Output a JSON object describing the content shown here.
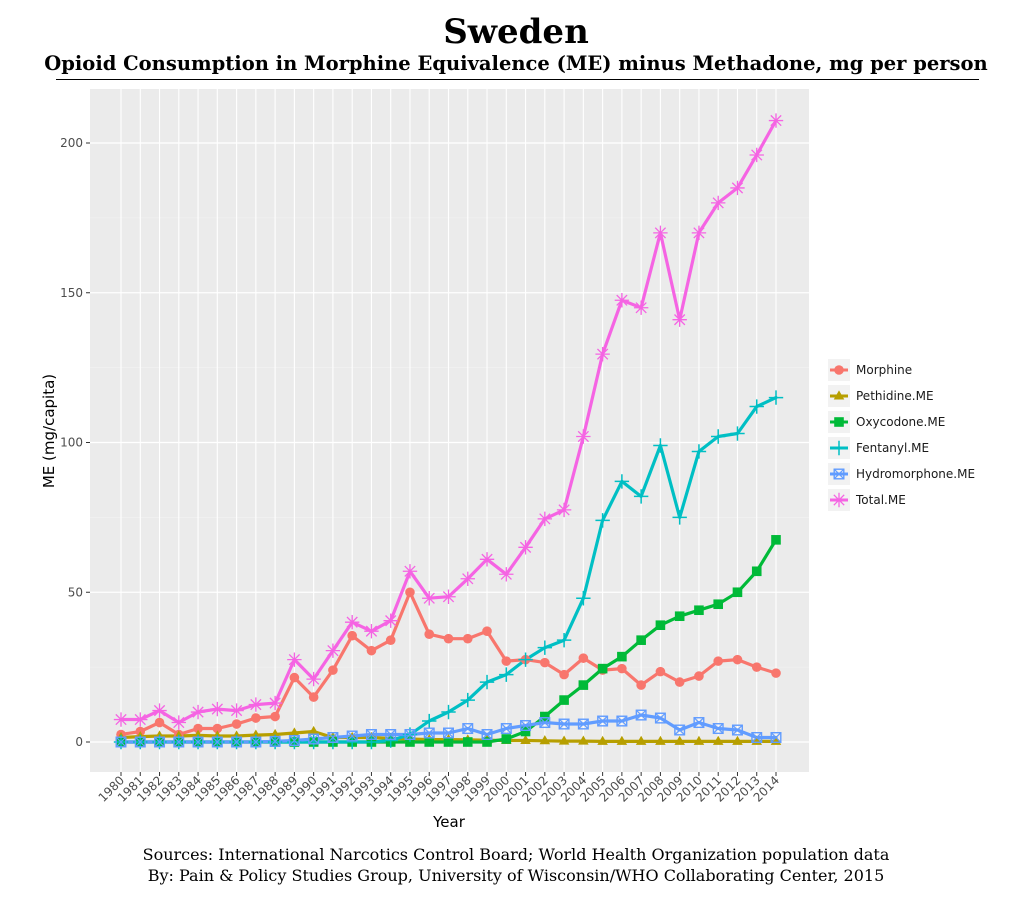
{
  "header": {
    "title": "Sweden",
    "subtitle": "Opioid Consumption in Morphine Equivalence (ME) minus Methadone, mg per person"
  },
  "footer": {
    "sources": "Sources: International Narcotics Control Board; World Health Organization population data",
    "credit": "By: Pain & Policy Studies Group, University of Wisconsin/WHO Collaborating Center, 2015"
  },
  "chart_data": {
    "type": "line",
    "xlabel": "Year",
    "ylabel": "ME (mg/capita)",
    "x": [
      "1980",
      "1981",
      "1982",
      "1983",
      "1984",
      "1985",
      "1986",
      "1987",
      "1988",
      "1989",
      "1990",
      "1991",
      "1992",
      "1993",
      "1994",
      "1995",
      "1996",
      "1997",
      "1998",
      "1999",
      "2000",
      "2001",
      "2002",
      "2003",
      "2004",
      "2005",
      "2006",
      "2007",
      "2008",
      "2009",
      "2010",
      "2011",
      "2012",
      "2013",
      "2014"
    ],
    "ylim": [
      -10,
      218
    ],
    "yticks": [
      0,
      50,
      100,
      150,
      200
    ],
    "grid": true,
    "legend_position": "right",
    "series": [
      {
        "name": "Morphine",
        "color": "#F8766D",
        "marker": "circle",
        "values": [
          2.5,
          3.5,
          6.5,
          2.5,
          4.5,
          4.5,
          6,
          8,
          8.5,
          21.5,
          15,
          24,
          35.5,
          30.5,
          34,
          50,
          36,
          34.5,
          34.5,
          37,
          27,
          27.5,
          26.5,
          22.5,
          28,
          24,
          24.5,
          19,
          23.5,
          20,
          22,
          27,
          27.5,
          25,
          23
        ]
      },
      {
        "name": "Pethidine.ME",
        "color": "#B79F00",
        "marker": "triangle",
        "values": [
          1.5,
          1.8,
          2,
          2,
          2.2,
          2,
          2,
          2.3,
          2.5,
          3,
          3.5,
          1.5,
          1.5,
          1.5,
          1.2,
          1,
          0.8,
          0.8,
          0.7,
          0.6,
          0.5,
          0.5,
          0.4,
          0.3,
          0.3,
          0.2,
          0.2,
          0.2,
          0.2,
          0.2,
          0.2,
          0.2,
          0.2,
          0.2,
          0.2
        ]
      },
      {
        "name": "Oxycodone.ME",
        "color": "#00BA38",
        "marker": "square",
        "values": [
          0,
          0,
          0,
          0,
          0,
          0,
          0,
          0,
          0,
          0,
          0,
          0,
          0,
          0,
          0,
          0,
          0,
          0,
          0,
          0,
          1,
          3.5,
          8.5,
          14,
          19,
          24.5,
          28.5,
          34,
          39,
          42,
          44,
          46,
          50,
          57,
          67.5
        ]
      },
      {
        "name": "Fentanyl.ME",
        "color": "#00BFC4",
        "marker": "plus",
        "values": [
          0,
          0,
          0,
          0,
          0,
          0,
          0,
          0,
          0,
          0,
          0,
          0,
          0,
          0,
          0.5,
          2.5,
          7,
          10,
          14,
          20,
          22.5,
          27.5,
          31.5,
          34,
          48,
          74,
          87,
          82,
          99,
          75,
          97,
          102,
          103,
          112,
          115
        ]
      },
      {
        "name": "Hydromorphone.ME",
        "color": "#619CFF",
        "marker": "squarex",
        "values": [
          0,
          0,
          0,
          0,
          0,
          0,
          0,
          0,
          0.2,
          0.5,
          1,
          1.5,
          2,
          2.5,
          2.5,
          2.5,
          3,
          3,
          4.5,
          2.5,
          4.5,
          5.5,
          6.5,
          6,
          6,
          7,
          7,
          9,
          8,
          4,
          6.5,
          4.5,
          4,
          1.5,
          1.5
        ]
      },
      {
        "name": "Total.ME",
        "color": "#F564E3",
        "marker": "star",
        "values": [
          7.5,
          7.5,
          10.5,
          6.5,
          10,
          11,
          10.5,
          12.5,
          13,
          27.5,
          21,
          30.5,
          40,
          37,
          40.5,
          57,
          48,
          48.5,
          54.5,
          61,
          56,
          65,
          74.5,
          77.5,
          102,
          129.5,
          147.5,
          145,
          170,
          141,
          170,
          180,
          185,
          196,
          207.5
        ]
      }
    ]
  }
}
